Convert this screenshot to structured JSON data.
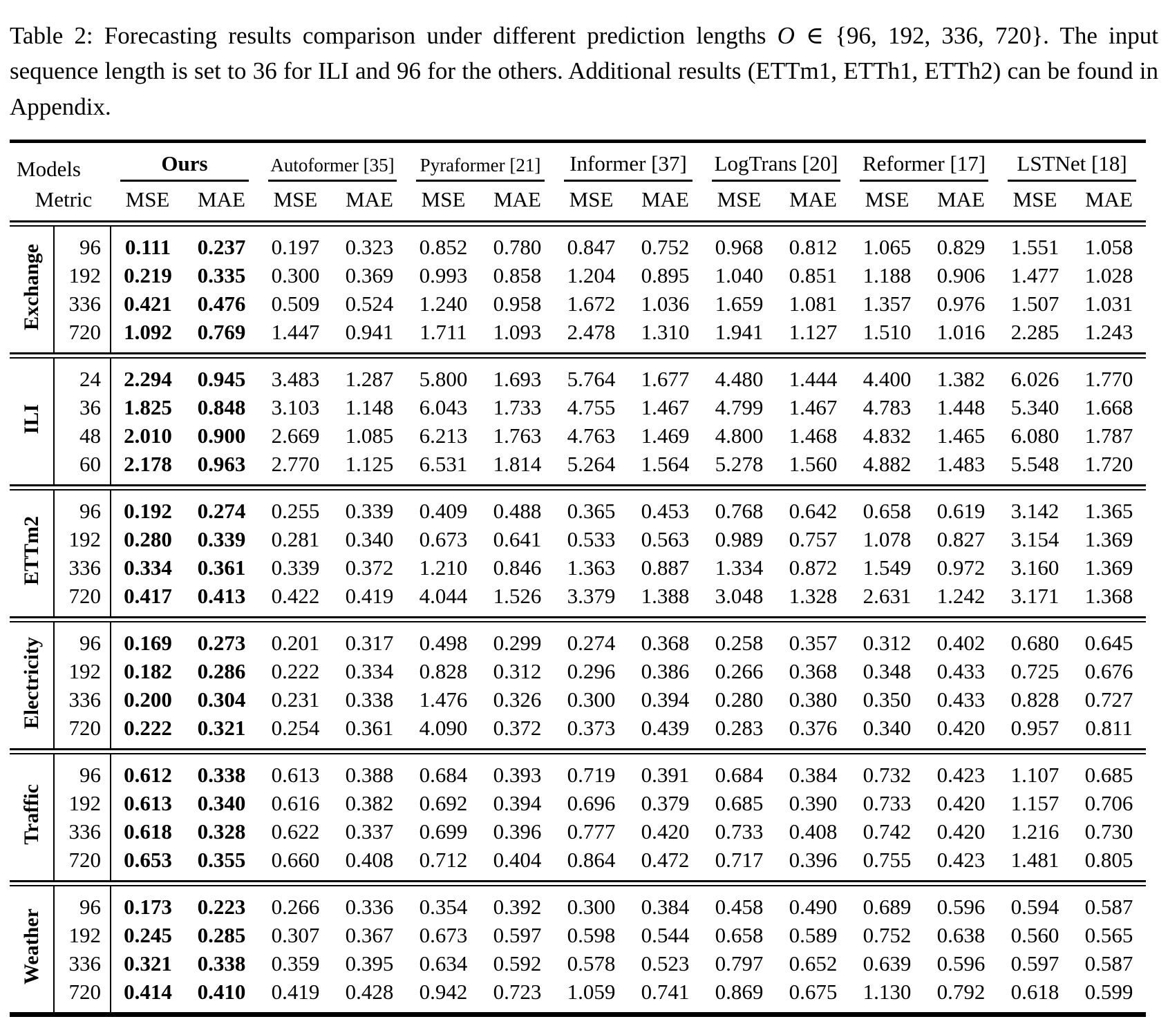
{
  "caption": {
    "part1": "Table 2: Forecasting results comparison under different prediction lengths ",
    "math_var": "O",
    "part2": " ∈ {96, 192, 336, 720}. The input sequence length is set to 36 for ILI and 96 for the others. Additional results (ETTm1, ETTh1, ETTh2) can be found in Appendix."
  },
  "table": {
    "header": {
      "models_label": "Models",
      "metric_label": "Metric",
      "mse_label": "MSE",
      "mae_label": "MAE",
      "models": [
        {
          "name": "Ours",
          "bold": true,
          "small": false
        },
        {
          "name": "Autoformer [35]",
          "bold": false,
          "small": true
        },
        {
          "name": "Pyraformer [21]",
          "bold": false,
          "small": true
        },
        {
          "name": "Informer [37]",
          "bold": false,
          "small": false
        },
        {
          "name": "LogTrans [20]",
          "bold": false,
          "small": false
        },
        {
          "name": "Reformer [17]",
          "bold": false,
          "small": false
        },
        {
          "name": "LSTNet [18]",
          "bold": false,
          "small": false
        }
      ]
    },
    "bold_model_columns": [
      0,
      1
    ],
    "groups": [
      {
        "name": "Exchange",
        "rows": [
          {
            "length": "96",
            "values": [
              "0.111",
              "0.237",
              "0.197",
              "0.323",
              "0.852",
              "0.780",
              "0.847",
              "0.752",
              "0.968",
              "0.812",
              "1.065",
              "0.829",
              "1.551",
              "1.058"
            ]
          },
          {
            "length": "192",
            "values": [
              "0.219",
              "0.335",
              "0.300",
              "0.369",
              "0.993",
              "0.858",
              "1.204",
              "0.895",
              "1.040",
              "0.851",
              "1.188",
              "0.906",
              "1.477",
              "1.028"
            ]
          },
          {
            "length": "336",
            "values": [
              "0.421",
              "0.476",
              "0.509",
              "0.524",
              "1.240",
              "0.958",
              "1.672",
              "1.036",
              "1.659",
              "1.081",
              "1.357",
              "0.976",
              "1.507",
              "1.031"
            ]
          },
          {
            "length": "720",
            "values": [
              "1.092",
              "0.769",
              "1.447",
              "0.941",
              "1.711",
              "1.093",
              "2.478",
              "1.310",
              "1.941",
              "1.127",
              "1.510",
              "1.016",
              "2.285",
              "1.243"
            ]
          }
        ]
      },
      {
        "name": "ILI",
        "rows": [
          {
            "length": "24",
            "values": [
              "2.294",
              "0.945",
              "3.483",
              "1.287",
              "5.800",
              "1.693",
              "5.764",
              "1.677",
              "4.480",
              "1.444",
              "4.400",
              "1.382",
              "6.026",
              "1.770"
            ]
          },
          {
            "length": "36",
            "values": [
              "1.825",
              "0.848",
              "3.103",
              "1.148",
              "6.043",
              "1.733",
              "4.755",
              "1.467",
              "4.799",
              "1.467",
              "4.783",
              "1.448",
              "5.340",
              "1.668"
            ]
          },
          {
            "length": "48",
            "values": [
              "2.010",
              "0.900",
              "2.669",
              "1.085",
              "6.213",
              "1.763",
              "4.763",
              "1.469",
              "4.800",
              "1.468",
              "4.832",
              "1.465",
              "6.080",
              "1.787"
            ]
          },
          {
            "length": "60",
            "values": [
              "2.178",
              "0.963",
              "2.770",
              "1.125",
              "6.531",
              "1.814",
              "5.264",
              "1.564",
              "5.278",
              "1.560",
              "4.882",
              "1.483",
              "5.548",
              "1.720"
            ]
          }
        ]
      },
      {
        "name": "ETTm2",
        "rows": [
          {
            "length": "96",
            "values": [
              "0.192",
              "0.274",
              "0.255",
              "0.339",
              "0.409",
              "0.488",
              "0.365",
              "0.453",
              "0.768",
              "0.642",
              "0.658",
              "0.619",
              "3.142",
              "1.365"
            ]
          },
          {
            "length": "192",
            "values": [
              "0.280",
              "0.339",
              "0.281",
              "0.340",
              "0.673",
              "0.641",
              "0.533",
              "0.563",
              "0.989",
              "0.757",
              "1.078",
              "0.827",
              "3.154",
              "1.369"
            ]
          },
          {
            "length": "336",
            "values": [
              "0.334",
              "0.361",
              "0.339",
              "0.372",
              "1.210",
              "0.846",
              "1.363",
              "0.887",
              "1.334",
              "0.872",
              "1.549",
              "0.972",
              "3.160",
              "1.369"
            ]
          },
          {
            "length": "720",
            "values": [
              "0.417",
              "0.413",
              "0.422",
              "0.419",
              "4.044",
              "1.526",
              "3.379",
              "1.388",
              "3.048",
              "1.328",
              "2.631",
              "1.242",
              "3.171",
              "1.368"
            ]
          }
        ]
      },
      {
        "name": "Electricity",
        "rows": [
          {
            "length": "96",
            "values": [
              "0.169",
              "0.273",
              "0.201",
              "0.317",
              "0.498",
              "0.299",
              "0.274",
              "0.368",
              "0.258",
              "0.357",
              "0.312",
              "0.402",
              "0.680",
              "0.645"
            ]
          },
          {
            "length": "192",
            "values": [
              "0.182",
              "0.286",
              "0.222",
              "0.334",
              "0.828",
              "0.312",
              "0.296",
              "0.386",
              "0.266",
              "0.368",
              "0.348",
              "0.433",
              "0.725",
              "0.676"
            ]
          },
          {
            "length": "336",
            "values": [
              "0.200",
              "0.304",
              "0.231",
              "0.338",
              "1.476",
              "0.326",
              "0.300",
              "0.394",
              "0.280",
              "0.380",
              "0.350",
              "0.433",
              "0.828",
              "0.727"
            ]
          },
          {
            "length": "720",
            "values": [
              "0.222",
              "0.321",
              "0.254",
              "0.361",
              "4.090",
              "0.372",
              "0.373",
              "0.439",
              "0.283",
              "0.376",
              "0.340",
              "0.420",
              "0.957",
              "0.811"
            ]
          }
        ]
      },
      {
        "name": "Traffic",
        "rows": [
          {
            "length": "96",
            "values": [
              "0.612",
              "0.338",
              "0.613",
              "0.388",
              "0.684",
              "0.393",
              "0.719",
              "0.391",
              "0.684",
              "0.384",
              "0.732",
              "0.423",
              "1.107",
              "0.685"
            ]
          },
          {
            "length": "192",
            "values": [
              "0.613",
              "0.340",
              "0.616",
              "0.382",
              "0.692",
              "0.394",
              "0.696",
              "0.379",
              "0.685",
              "0.390",
              "0.733",
              "0.420",
              "1.157",
              "0.706"
            ]
          },
          {
            "length": "336",
            "values": [
              "0.618",
              "0.328",
              "0.622",
              "0.337",
              "0.699",
              "0.396",
              "0.777",
              "0.420",
              "0.733",
              "0.408",
              "0.742",
              "0.420",
              "1.216",
              "0.730"
            ]
          },
          {
            "length": "720",
            "values": [
              "0.653",
              "0.355",
              "0.660",
              "0.408",
              "0.712",
              "0.404",
              "0.864",
              "0.472",
              "0.717",
              "0.396",
              "0.755",
              "0.423",
              "1.481",
              "0.805"
            ]
          }
        ]
      },
      {
        "name": "Weather",
        "rows": [
          {
            "length": "96",
            "values": [
              "0.173",
              "0.223",
              "0.266",
              "0.336",
              "0.354",
              "0.392",
              "0.300",
              "0.384",
              "0.458",
              "0.490",
              "0.689",
              "0.596",
              "0.594",
              "0.587"
            ]
          },
          {
            "length": "192",
            "values": [
              "0.245",
              "0.285",
              "0.307",
              "0.367",
              "0.673",
              "0.597",
              "0.598",
              "0.544",
              "0.658",
              "0.589",
              "0.752",
              "0.638",
              "0.560",
              "0.565"
            ]
          },
          {
            "length": "336",
            "values": [
              "0.321",
              "0.338",
              "0.359",
              "0.395",
              "0.634",
              "0.592",
              "0.578",
              "0.523",
              "0.797",
              "0.652",
              "0.639",
              "0.596",
              "0.597",
              "0.587"
            ]
          },
          {
            "length": "720",
            "values": [
              "0.414",
              "0.410",
              "0.419",
              "0.428",
              "0.942",
              "0.723",
              "1.059",
              "0.741",
              "0.869",
              "0.675",
              "1.130",
              "0.792",
              "0.618",
              "0.599"
            ]
          }
        ]
      }
    ]
  }
}
